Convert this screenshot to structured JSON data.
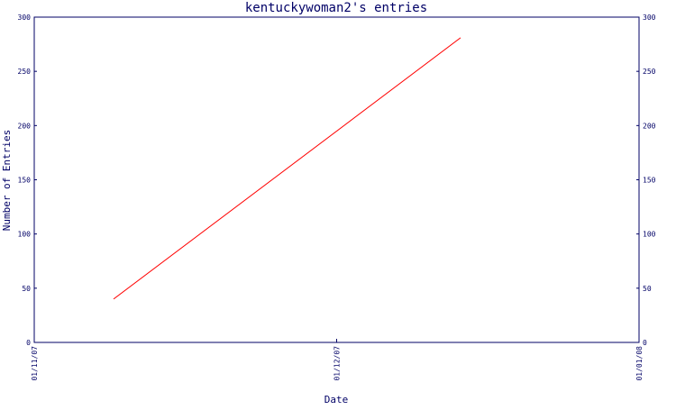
{
  "chart_data": {
    "type": "line",
    "title": "kentuckywoman2's entries",
    "xlabel": "Date",
    "ylabel": "Number of Entries",
    "x_ticks": [
      "01/11/07",
      "01/12/07",
      "01/01/08"
    ],
    "xlim": [
      "2007-11-01",
      "2008-01-01"
    ],
    "ylim": [
      0,
      300
    ],
    "y_ticks": [
      0,
      50,
      100,
      150,
      200,
      250,
      300
    ],
    "grid": false,
    "series": [
      {
        "x": [
          "2007-11-09",
          "2007-12-14"
        ],
        "y": [
          40,
          281
        ]
      }
    ],
    "colors": {
      "axis": "#000066",
      "line": "#ff0000"
    }
  }
}
